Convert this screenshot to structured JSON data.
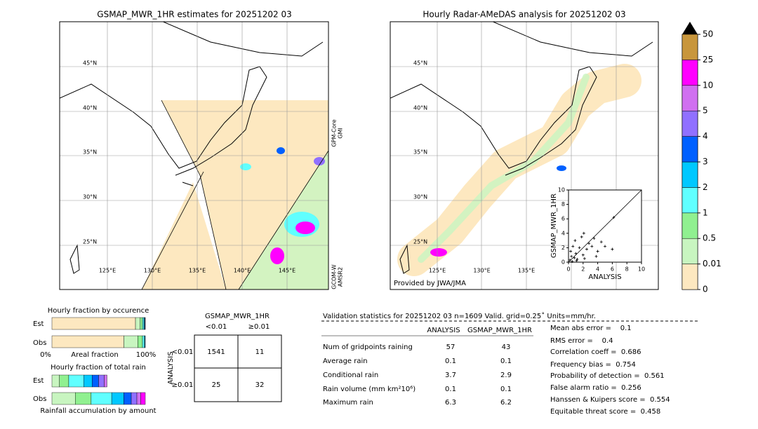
{
  "left_map": {
    "title": "GSMAP_MWR_1HR estimates for 20251202 03",
    "lat_labels": [
      "45°N",
      "40°N",
      "35°N",
      "30°N",
      "25°N"
    ],
    "lon_labels": [
      "125°E",
      "130°E",
      "135°E",
      "140°E",
      "145°E"
    ],
    "sensor_1": [
      "GPM-Core",
      "GMI"
    ],
    "sensor_2": [
      "GCOM-W",
      "AMSR2"
    ]
  },
  "right_map": {
    "title": "Hourly Radar-AMeDAS analysis for 20251202 03",
    "lat_labels": [
      "45°N",
      "40°N",
      "35°N",
      "30°N",
      "25°N"
    ],
    "lon_labels": [
      "125°E",
      "130°E",
      "135°E"
    ],
    "credit": "Provided by JWA/JMA"
  },
  "scatter": {
    "x_label": "ANALYSIS",
    "y_label": "GSMAP_MWR_1HR",
    "xlim": [
      0,
      10
    ],
    "ylim": [
      0,
      10
    ],
    "xticks": [
      0,
      2,
      4,
      6,
      8,
      10
    ],
    "yticks": [
      0,
      2,
      4,
      6,
      8,
      10
    ],
    "x": [
      0.2,
      0.5,
      0.8,
      1,
      1.2,
      0.3,
      1.5,
      2,
      2.5,
      0.6,
      1.8,
      2.1,
      3.2,
      4,
      3.5,
      5,
      6,
      6.2,
      2.2,
      0.4,
      1.1,
      0.9,
      2.8,
      4.5,
      3.8
    ],
    "y": [
      0.3,
      0.1,
      0.6,
      1.2,
      0.4,
      1.5,
      2,
      1,
      1.8,
      2.2,
      3.5,
      4,
      2.2,
      1.5,
      3.3,
      2.2,
      1.8,
      6.2,
      0.5,
      0.8,
      0.2,
      3,
      2.6,
      2.8,
      0.8
    ]
  },
  "colorbar": {
    "ticks": [
      0,
      0.01,
      0.5,
      1,
      2,
      3,
      4,
      5,
      10,
      25,
      50
    ],
    "colors": [
      "#fde8c0",
      "#c8f5c0",
      "#90f090",
      "#60ffff",
      "#00c8ff",
      "#0060ff",
      "#9070ff",
      "#d070f0",
      "#ff00ff",
      "#c8963c"
    ]
  },
  "occurrence": {
    "title": "Hourly fraction by occurence",
    "rows": [
      "Est",
      "Obs"
    ],
    "x_labels": [
      "0%",
      "Areal fraction",
      "100%"
    ],
    "est": [
      89.5,
      5,
      2.5,
      1.5,
      0.8,
      0.4,
      0.2,
      0.1,
      0,
      0
    ],
    "obs": [
      77,
      15,
      5,
      2,
      0.7,
      0.2,
      0.1,
      0,
      0,
      0
    ]
  },
  "total_rain": {
    "title": "Hourly fraction of total rain",
    "footer": "Rainfall accumulation by amount",
    "rows": [
      "Est",
      "Obs"
    ],
    "est": [
      0,
      8,
      10,
      16,
      9,
      7,
      6,
      3,
      0,
      0
    ],
    "obs": [
      0,
      25,
      17,
      22,
      13,
      8,
      6,
      4,
      5,
      0
    ]
  },
  "contingency": {
    "title": "GSMAP_MWR_1HR",
    "col_labels": [
      "<0.01",
      "≥0.01"
    ],
    "row_header": "ANALYSIS",
    "row_labels": [
      "<0.01",
      "≥0.01"
    ],
    "cells": [
      [
        1541,
        11
      ],
      [
        25,
        32
      ]
    ]
  },
  "stats": {
    "header": "Validation statistics for 20251202 03  n=1609 Valid. grid=0.25˚ Units=mm/hr.",
    "columns": [
      "ANALYSIS",
      "GSMAP_MWR_1HR"
    ],
    "rows": [
      [
        "Num of gridpoints raining",
        57,
        43
      ],
      [
        "Average rain",
        0.1,
        0.1
      ],
      [
        "Conditional rain",
        3.7,
        2.9
      ],
      [
        "Rain volume (mm km²10⁶)",
        0.1,
        0.1
      ],
      [
        "Maximum rain",
        6.3,
        6.2
      ]
    ],
    "scores": [
      "Mean abs error =    0.1",
      "RMS error =    0.4",
      "Correlation coeff =  0.686",
      "Frequency bias =  0.754",
      "Probability of detection =  0.561",
      "False alarm ratio =  0.256",
      "Hanssen & Kuipers score =  0.554",
      "Equitable threat score =  0.458"
    ]
  }
}
